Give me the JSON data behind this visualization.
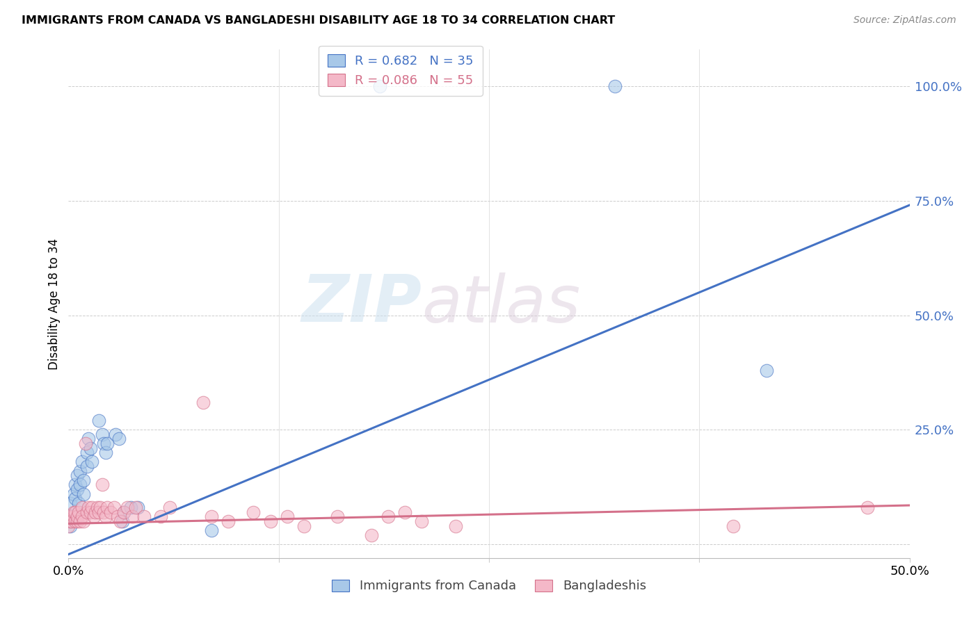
{
  "title": "IMMIGRANTS FROM CANADA VS BANGLADESHI DISABILITY AGE 18 TO 34 CORRELATION CHART",
  "source": "Source: ZipAtlas.com",
  "ylabel": "Disability Age 18 to 34",
  "xlim": [
    0.0,
    0.5
  ],
  "ylim": [
    -0.03,
    1.08
  ],
  "color_blue": "#a8c8e8",
  "color_pink": "#f4b8c8",
  "line_blue": "#4472c4",
  "line_pink": "#d4708a",
  "watermark_zip": "ZIP",
  "watermark_atlas": "atlas",
  "canada_points": [
    [
      0.0,
      0.05
    ],
    [
      0.001,
      0.04
    ],
    [
      0.001,
      0.09
    ],
    [
      0.002,
      0.06
    ],
    [
      0.003,
      0.11
    ],
    [
      0.004,
      0.13
    ],
    [
      0.004,
      0.1
    ],
    [
      0.005,
      0.15
    ],
    [
      0.005,
      0.12
    ],
    [
      0.006,
      0.09
    ],
    [
      0.007,
      0.16
    ],
    [
      0.007,
      0.13
    ],
    [
      0.008,
      0.18
    ],
    [
      0.009,
      0.14
    ],
    [
      0.009,
      0.11
    ],
    [
      0.011,
      0.2
    ],
    [
      0.011,
      0.17
    ],
    [
      0.012,
      0.23
    ],
    [
      0.013,
      0.21
    ],
    [
      0.014,
      0.18
    ],
    [
      0.018,
      0.27
    ],
    [
      0.02,
      0.24
    ],
    [
      0.021,
      0.22
    ],
    [
      0.022,
      0.2
    ],
    [
      0.023,
      0.22
    ],
    [
      0.028,
      0.24
    ],
    [
      0.03,
      0.23
    ],
    [
      0.032,
      0.05
    ],
    [
      0.033,
      0.07
    ],
    [
      0.037,
      0.08
    ],
    [
      0.041,
      0.08
    ],
    [
      0.085,
      0.03
    ],
    [
      0.185,
      1.0
    ],
    [
      0.325,
      1.0
    ],
    [
      0.415,
      0.38
    ]
  ],
  "bangladesh_points": [
    [
      0.0,
      0.04
    ],
    [
      0.0,
      0.06
    ],
    [
      0.001,
      0.05
    ],
    [
      0.002,
      0.05
    ],
    [
      0.003,
      0.06
    ],
    [
      0.003,
      0.07
    ],
    [
      0.004,
      0.05
    ],
    [
      0.004,
      0.07
    ],
    [
      0.005,
      0.05
    ],
    [
      0.005,
      0.06
    ],
    [
      0.006,
      0.07
    ],
    [
      0.007,
      0.05
    ],
    [
      0.008,
      0.08
    ],
    [
      0.008,
      0.06
    ],
    [
      0.009,
      0.05
    ],
    [
      0.01,
      0.22
    ],
    [
      0.011,
      0.07
    ],
    [
      0.012,
      0.08
    ],
    [
      0.013,
      0.07
    ],
    [
      0.014,
      0.08
    ],
    [
      0.015,
      0.06
    ],
    [
      0.016,
      0.07
    ],
    [
      0.017,
      0.08
    ],
    [
      0.018,
      0.07
    ],
    [
      0.019,
      0.08
    ],
    [
      0.02,
      0.13
    ],
    [
      0.021,
      0.07
    ],
    [
      0.022,
      0.06
    ],
    [
      0.023,
      0.08
    ],
    [
      0.025,
      0.07
    ],
    [
      0.027,
      0.08
    ],
    [
      0.029,
      0.06
    ],
    [
      0.031,
      0.05
    ],
    [
      0.033,
      0.07
    ],
    [
      0.035,
      0.08
    ],
    [
      0.038,
      0.06
    ],
    [
      0.04,
      0.08
    ],
    [
      0.045,
      0.06
    ],
    [
      0.055,
      0.06
    ],
    [
      0.06,
      0.08
    ],
    [
      0.08,
      0.31
    ],
    [
      0.085,
      0.06
    ],
    [
      0.095,
      0.05
    ],
    [
      0.11,
      0.07
    ],
    [
      0.12,
      0.05
    ],
    [
      0.13,
      0.06
    ],
    [
      0.14,
      0.04
    ],
    [
      0.16,
      0.06
    ],
    [
      0.18,
      0.02
    ],
    [
      0.19,
      0.06
    ],
    [
      0.2,
      0.07
    ],
    [
      0.21,
      0.05
    ],
    [
      0.23,
      0.04
    ],
    [
      0.395,
      0.04
    ],
    [
      0.475,
      0.08
    ]
  ],
  "blue_line_params": [
    1.525,
    -0.022
  ],
  "pink_line_params": [
    0.08,
    0.045
  ]
}
